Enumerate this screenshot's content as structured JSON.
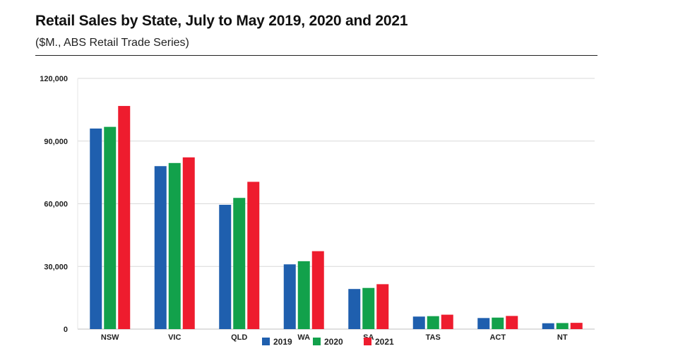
{
  "chart_data": {
    "type": "bar",
    "title": "Retail Sales by State, July to May 2019, 2020 and 2021",
    "subtitle": "($M., ABS Retail Trade Series)",
    "categories": [
      "NSW",
      "VIC",
      "QLD",
      "WA",
      "SA",
      "TAS",
      "ACT",
      "NT"
    ],
    "series": [
      {
        "name": "2019",
        "color": "#1f5fae",
        "values": [
          96000,
          78000,
          59500,
          31000,
          19200,
          6000,
          5300,
          2800
        ]
      },
      {
        "name": "2020",
        "color": "#12a14b",
        "values": [
          96800,
          79500,
          62800,
          32500,
          19700,
          6200,
          5500,
          2900
        ]
      },
      {
        "name": "2021",
        "color": "#ee1c2e",
        "values": [
          106800,
          82200,
          70500,
          37300,
          21500,
          6900,
          6300,
          3000
        ]
      }
    ],
    "yticks": [
      "0",
      "30,000",
      "60,000",
      "90,000",
      "120,000"
    ],
    "ytick_values": [
      0,
      30000,
      60000,
      90000,
      120000
    ],
    "ylim": [
      0,
      120000
    ],
    "grid": true,
    "legend": "bottom-center"
  }
}
